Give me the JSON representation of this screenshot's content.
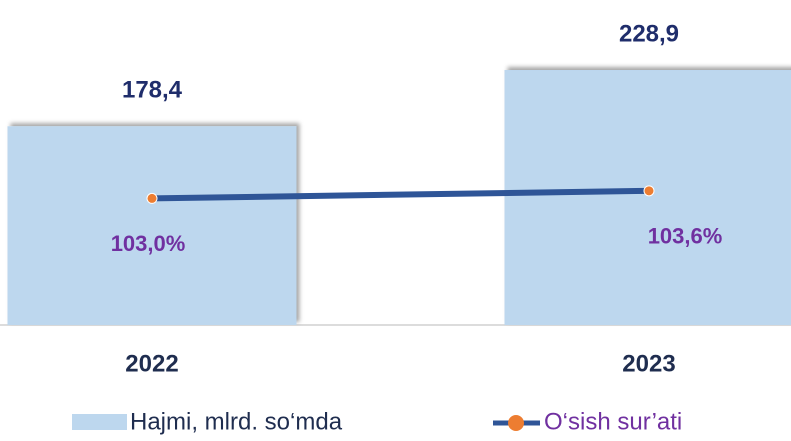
{
  "chart_data": {
    "type": "bar_line",
    "categories": [
      "2022",
      "2023"
    ],
    "series": [
      {
        "name": "Hajmi, mlrd. so‘mda",
        "type": "bar",
        "color": "#bdd7ee",
        "values": [
          178.4,
          228.9
        ],
        "value_labels": [
          "178,4",
          "228,9"
        ]
      },
      {
        "name": "O‘sish sur’ati",
        "type": "line",
        "axis": "y2",
        "color": "#2f5597",
        "marker_color": "#ed7d31",
        "values": [
          103.0,
          103.6
        ],
        "value_labels": [
          "103,0%",
          "103,6%"
        ]
      }
    ],
    "ylim": [
      0,
      250
    ],
    "y2lim": [
      93,
      115
    ],
    "legend": "bottom"
  }
}
